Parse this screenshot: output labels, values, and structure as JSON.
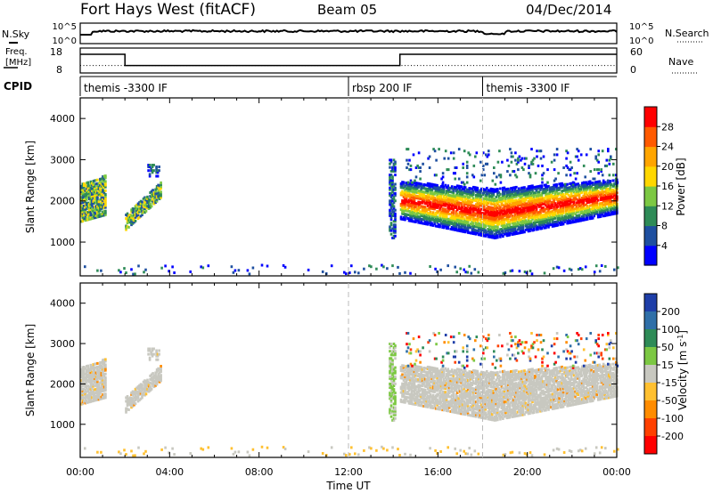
{
  "header": {
    "title": "Fort Hays West (fitACF)",
    "beam": "Beam 05",
    "date": "04/Dec/2014"
  },
  "top_panels": {
    "nsky_label": "N.Sky",
    "nsky_ticks": [
      "10^5",
      "10^0"
    ],
    "nsearch_label": "N.Search",
    "nsearch_ticks": [
      "10^5",
      "10^0"
    ],
    "freq_label_1": "Freq.",
    "freq_label_2": "[MHz]",
    "freq_ticks": [
      "18",
      "8"
    ],
    "freq_range": [
      8,
      18
    ],
    "nave_label": "Nave",
    "nave_ticks": [
      "60",
      "0"
    ],
    "nave_range": [
      0,
      60
    ],
    "cpid_label": "CPID",
    "cpid_segments": [
      {
        "start": 0,
        "label": "themis -3300 IF"
      },
      {
        "start": 12,
        "label": "rbsp 200 IF"
      },
      {
        "start": 18,
        "label": "themis -3300 IF"
      }
    ],
    "freq_steps": [
      [
        0,
        15.5
      ],
      [
        2,
        15.5
      ],
      [
        2,
        11
      ],
      [
        14.3,
        11
      ],
      [
        14.3,
        15.5
      ],
      [
        24,
        15.5
      ]
    ]
  },
  "chart_data": [
    {
      "type": "heatmap",
      "name": "power",
      "ylabel": "Slant Range [km]",
      "xlabel": "",
      "xlim": [
        0,
        24
      ],
      "ylim": [
        180,
        4500
      ],
      "yticks": [
        "1000",
        "2000",
        "3000",
        "4000"
      ],
      "colorbar_label": "Power [dB]",
      "colorbar_ticks": [
        "4",
        "8",
        "12",
        "16",
        "20",
        "24",
        "28"
      ],
      "colorbar_colors": [
        "#0000ff",
        "#1e4fa0",
        "#2e8b57",
        "#7cc843",
        "#ffd700",
        "#ffa500",
        "#ff5a00",
        "#ff0000"
      ]
    },
    {
      "type": "heatmap",
      "name": "velocity",
      "ylabel": "Slant Range [km]",
      "xlabel": "Time UT",
      "xlim": [
        0,
        24
      ],
      "ylim": [
        180,
        4500
      ],
      "yticks": [
        "1000",
        "2000",
        "3000",
        "4000"
      ],
      "xticks": [
        "00:00",
        "04:00",
        "08:00",
        "12:00",
        "16:00",
        "20:00",
        "00:00"
      ],
      "colorbar_label_main": "Velocity [m s",
      "colorbar_label_sup": "-1",
      "colorbar_label_end": "]",
      "colorbar_ticks": [
        "200",
        "100",
        "50",
        "15",
        "-15",
        "-50",
        "-100",
        "-200"
      ],
      "colorbar_colors": [
        "#1e3ea8",
        "#2f6fa8",
        "#2e8b57",
        "#7cc843",
        "#c8c8c0",
        "#ffc030",
        "#ff8c00",
        "#ff4000",
        "#ff0000"
      ],
      "ground_scatter_color": "#c8c8c0"
    }
  ]
}
